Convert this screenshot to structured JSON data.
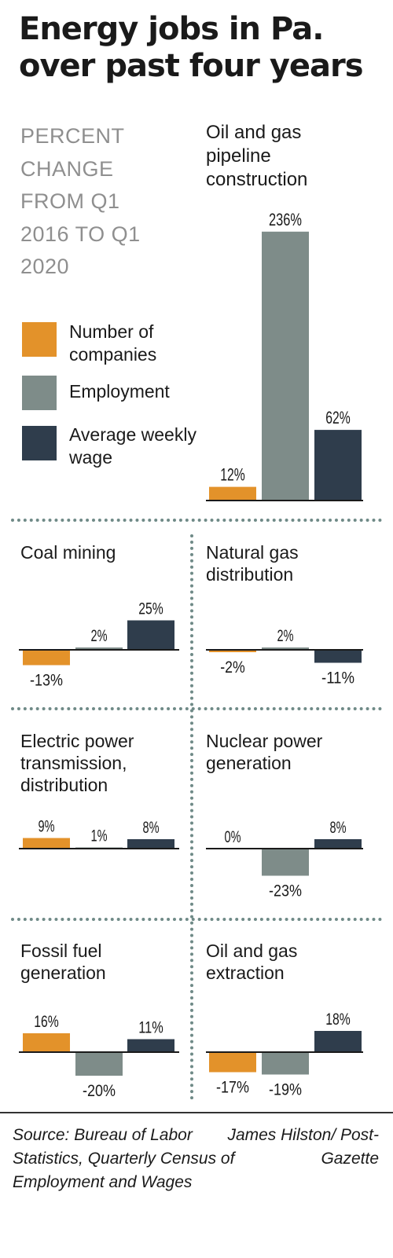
{
  "title": "Energy jobs in Pa. over past four years",
  "subtitle": "PERCENT CHANGE FROM Q1 2016 TO Q1 2020",
  "colors": {
    "companies": "#e3922a",
    "employment": "#7e8c89",
    "wage": "#2f3d4c",
    "dots": "#6f8a87"
  },
  "legend": {
    "companies": "Number of companies",
    "employment": "Employment",
    "wage": "Average weekly wage"
  },
  "chart_data": [
    {
      "type": "bar",
      "title": "Oil and gas pipeline construction",
      "series": [
        {
          "name": "Number of companies",
          "values": [
            12
          ],
          "labels": [
            "12%"
          ]
        },
        {
          "name": "Employment",
          "values": [
            236
          ],
          "labels": [
            "236%"
          ]
        },
        {
          "name": "Average weekly wage",
          "values": [
            62
          ],
          "labels": [
            "62%"
          ]
        }
      ]
    },
    {
      "type": "bar",
      "title": "Coal mining",
      "series": [
        {
          "name": "Number of companies",
          "values": [
            -13
          ],
          "labels": [
            "-13%"
          ]
        },
        {
          "name": "Employment",
          "values": [
            2
          ],
          "labels": [
            "2%"
          ]
        },
        {
          "name": "Average weekly wage",
          "values": [
            25
          ],
          "labels": [
            "25%"
          ]
        }
      ]
    },
    {
      "type": "bar",
      "title": "Natural gas distribution",
      "series": [
        {
          "name": "Number of companies",
          "values": [
            -2
          ],
          "labels": [
            "-2%"
          ]
        },
        {
          "name": "Employment",
          "values": [
            2
          ],
          "labels": [
            "2%"
          ]
        },
        {
          "name": "Average weekly wage",
          "values": [
            -11
          ],
          "labels": [
            "-11%"
          ]
        }
      ]
    },
    {
      "type": "bar",
      "title": "Electric power transmission, distribution",
      "series": [
        {
          "name": "Number of companies",
          "values": [
            9
          ],
          "labels": [
            "9%"
          ]
        },
        {
          "name": "Employment",
          "values": [
            1
          ],
          "labels": [
            "1%"
          ]
        },
        {
          "name": "Average weekly wage",
          "values": [
            8
          ],
          "labels": [
            "8%"
          ]
        }
      ]
    },
    {
      "type": "bar",
      "title": "Nuclear power generation",
      "series": [
        {
          "name": "Number of companies",
          "values": [
            0
          ],
          "labels": [
            "0%"
          ]
        },
        {
          "name": "Employment",
          "values": [
            -23
          ],
          "labels": [
            "-23%"
          ]
        },
        {
          "name": "Average weekly wage",
          "values": [
            8
          ],
          "labels": [
            "8%"
          ]
        }
      ]
    },
    {
      "type": "bar",
      "title": "Fossil fuel generation",
      "series": [
        {
          "name": "Number of companies",
          "values": [
            16
          ],
          "labels": [
            "16%"
          ]
        },
        {
          "name": "Employment",
          "values": [
            -20
          ],
          "labels": [
            "-20%"
          ]
        },
        {
          "name": "Average weekly wage",
          "values": [
            11
          ],
          "labels": [
            "11%"
          ]
        }
      ]
    },
    {
      "type": "bar",
      "title": "Oil and gas extraction",
      "series": [
        {
          "name": "Number of companies",
          "values": [
            -17
          ],
          "labels": [
            "-17%"
          ]
        },
        {
          "name": "Employment",
          "values": [
            -19
          ],
          "labels": [
            "-19%"
          ]
        },
        {
          "name": "Average weekly wage",
          "values": [
            18
          ],
          "labels": [
            "18%"
          ]
        }
      ]
    }
  ],
  "source": "Source: Bureau of Labor Statistics, Quarterly Census of Employment and Wages",
  "credit": "James Hilston/ Post-Gazette"
}
